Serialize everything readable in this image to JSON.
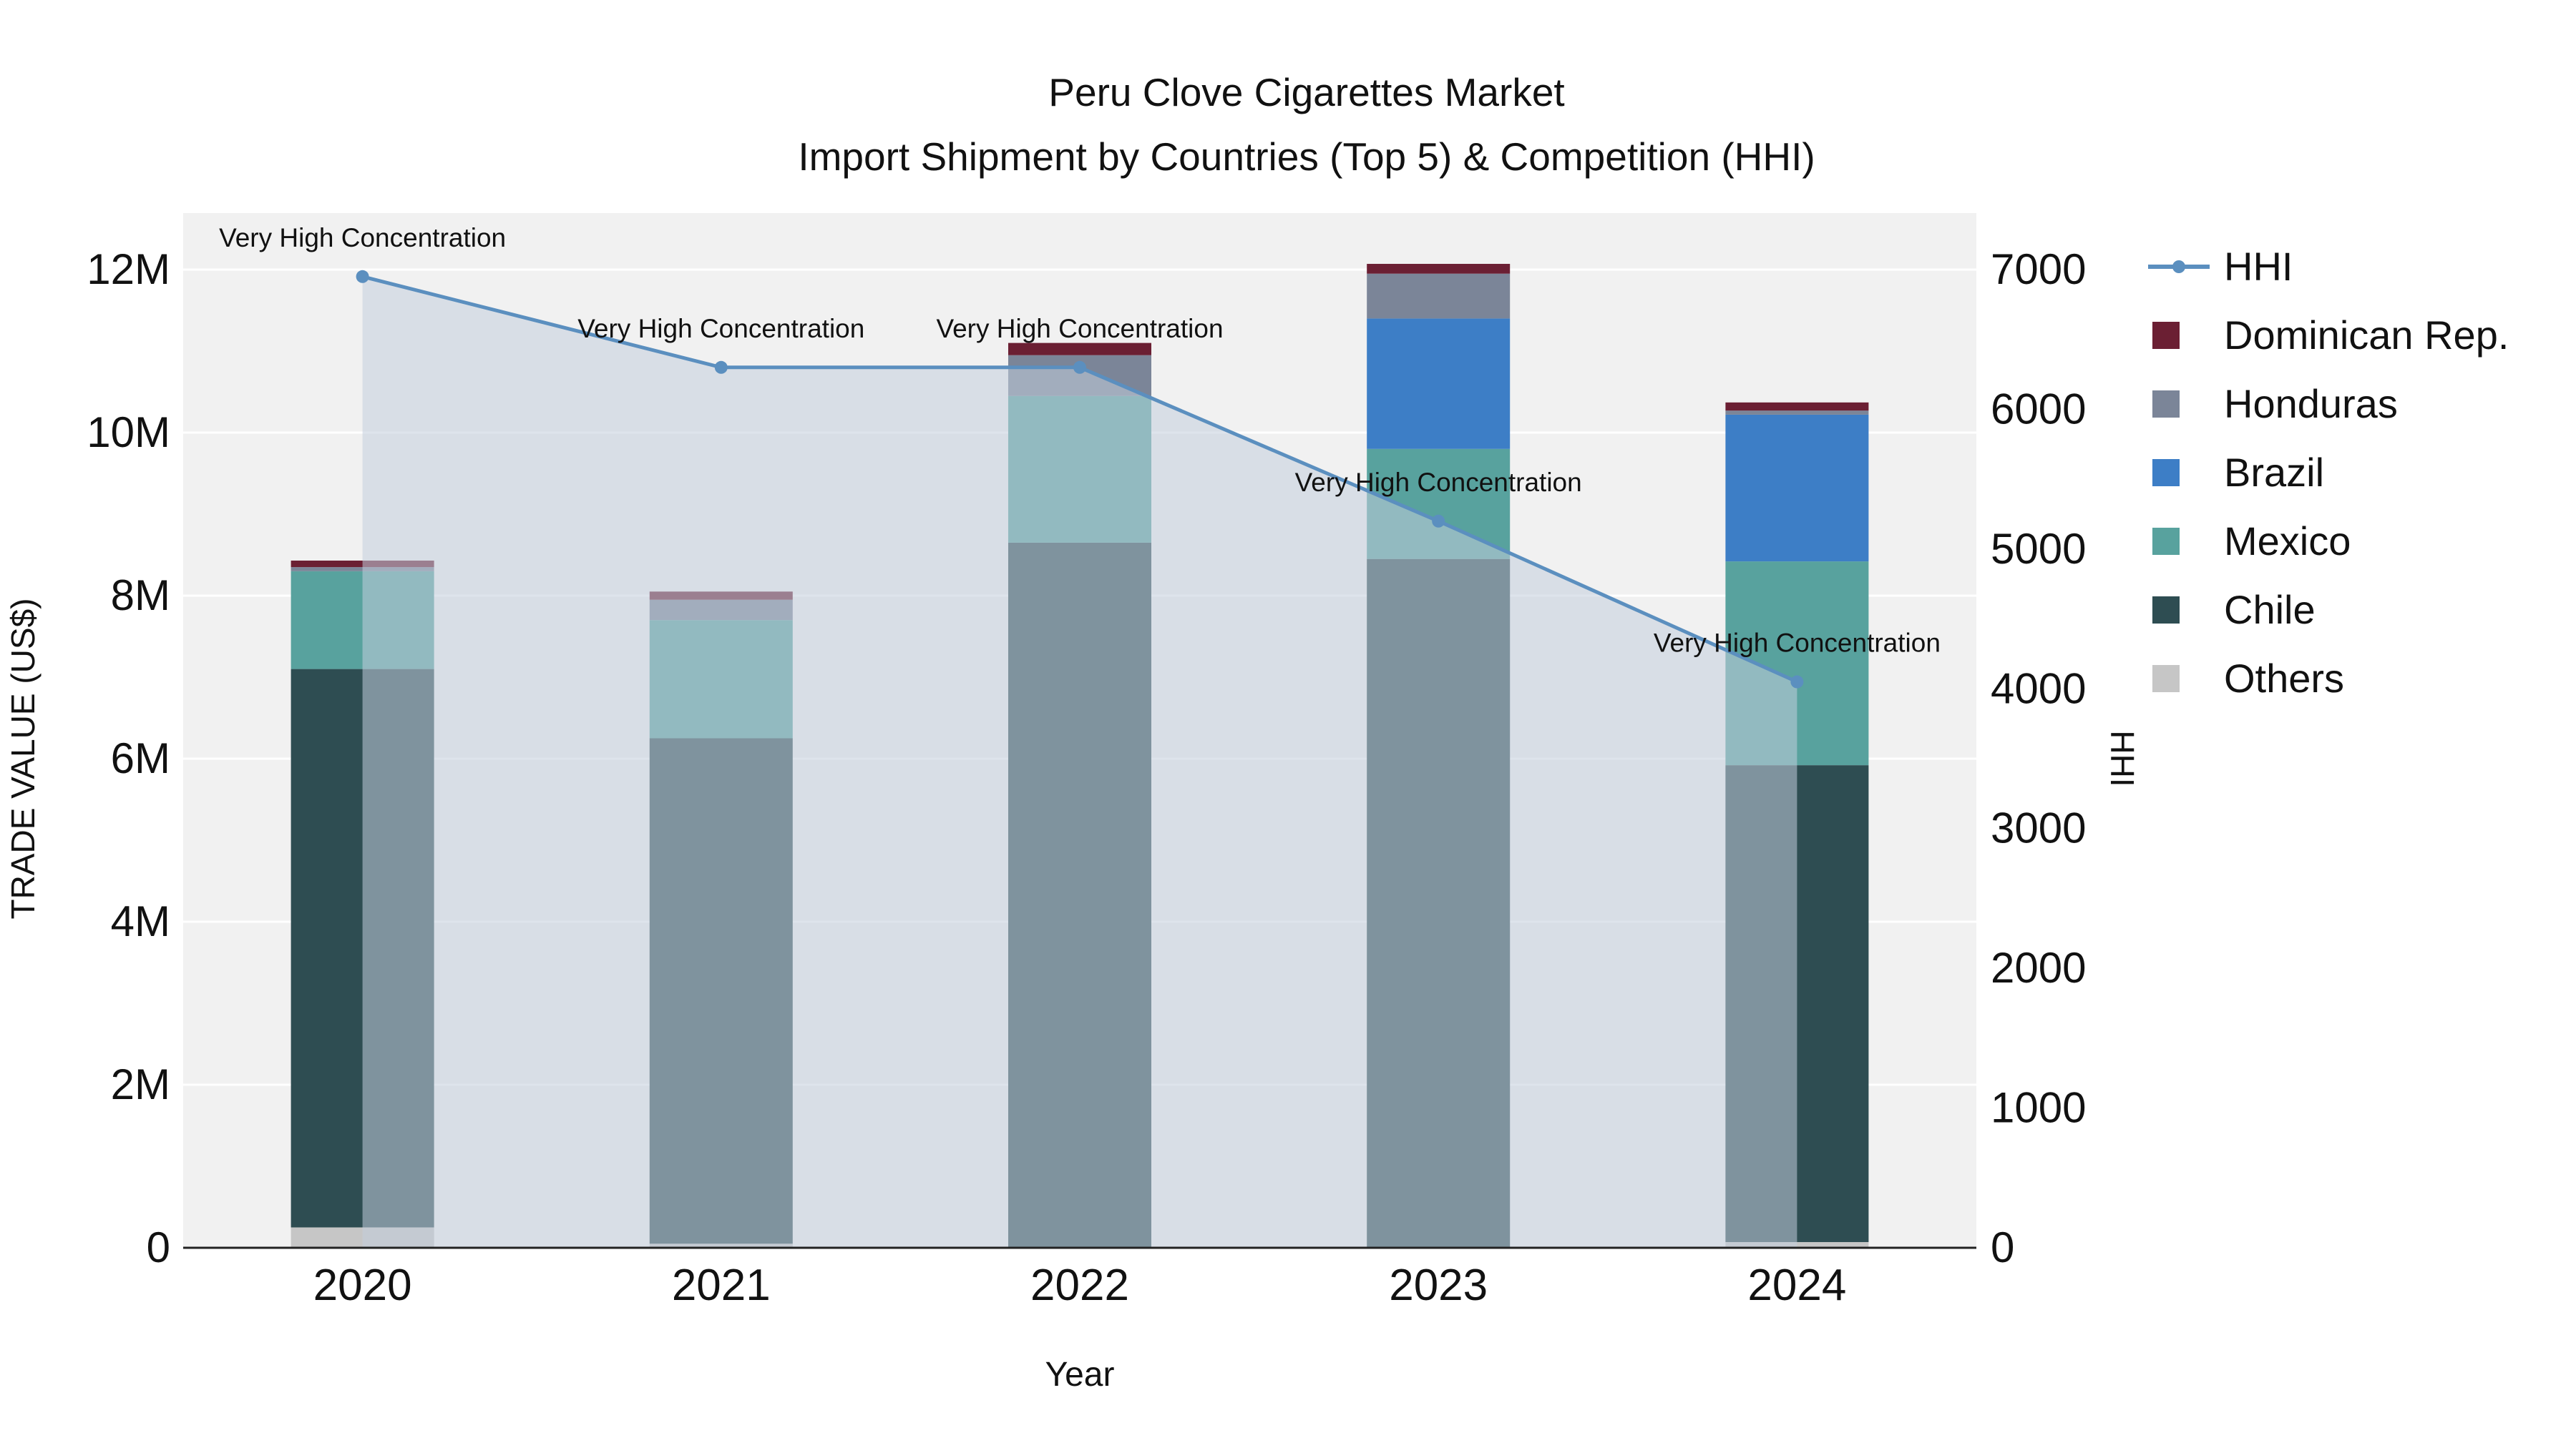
{
  "title": {
    "line1": "Peru Clove Cigarettes Market",
    "line2": "Import Shipment by Countries (Top 5) & Competition (HHI)"
  },
  "chart_data": {
    "type": "bar",
    "subtype": "stacked-bar-with-line",
    "categories": [
      "2020",
      "2021",
      "2022",
      "2023",
      "2024"
    ],
    "bar_unit": "US$",
    "series": [
      {
        "name": "Others",
        "color": "#c6c6c6",
        "values": [
          250000,
          50000,
          0,
          0,
          70000
        ]
      },
      {
        "name": "Chile",
        "color": "#2e4d52",
        "values": [
          6850000,
          6200000,
          8650000,
          8450000,
          5850000
        ]
      },
      {
        "name": "Mexico",
        "color": "#58a29e",
        "values": [
          1200000,
          1450000,
          1800000,
          1350000,
          2500000
        ]
      },
      {
        "name": "Brazil",
        "color": "#3d7ec6",
        "values": [
          0,
          0,
          0,
          1600000,
          1800000
        ]
      },
      {
        "name": "Honduras",
        "color": "#7b8598",
        "values": [
          50000,
          250000,
          500000,
          550000,
          50000
        ]
      },
      {
        "name": "Dominican Rep.",
        "color": "#6b1f33",
        "values": [
          80000,
          100000,
          150000,
          120000,
          100000
        ]
      }
    ],
    "line_series": {
      "name": "HHI",
      "color": "#5b8fbf",
      "area_fill": "#c2cddc",
      "area_opacity": 0.55,
      "values": [
        6950,
        6300,
        6300,
        5200,
        4050
      ]
    },
    "annotations": [
      "Very High Concentration",
      "Very High Concentration",
      "Very High Concentration",
      "Very High Concentration",
      "Very High Concentration"
    ],
    "left_axis": {
      "title": "TRADE VALUE (US$)",
      "tick_labels": [
        "0",
        "2M",
        "4M",
        "6M",
        "8M",
        "10M",
        "12M"
      ],
      "tick_values": [
        0,
        2000000,
        4000000,
        6000000,
        8000000,
        10000000,
        12000000
      ],
      "range": [
        0,
        12000000
      ]
    },
    "right_axis": {
      "title": "HHI",
      "tick_labels": [
        "0",
        "1000",
        "2000",
        "3000",
        "4000",
        "5000",
        "6000",
        "7000"
      ],
      "tick_values": [
        0,
        1000,
        2000,
        3000,
        4000,
        5000,
        6000,
        7000
      ],
      "range": [
        0,
        7000
      ]
    },
    "x_axis": {
      "title": "Year"
    },
    "legend": [
      "HHI",
      "Dominican Rep.",
      "Honduras",
      "Brazil",
      "Mexico",
      "Chile",
      "Others"
    ],
    "plot_background": "#f1f1f1",
    "grid_color": "#ffffff"
  }
}
